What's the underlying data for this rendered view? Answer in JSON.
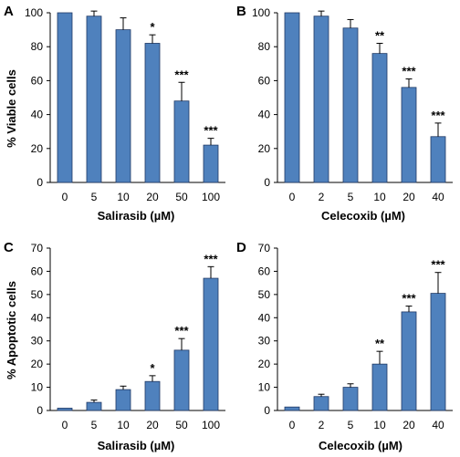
{
  "colors": {
    "bar": "#4F81BD",
    "bar_edge": "#1F3864",
    "axis": "#000000",
    "text": "#000000"
  },
  "chart_data": [
    {
      "panel": "A",
      "type": "bar",
      "ylabel": "% Viable cells",
      "xlabel": "Salirasib (µM)",
      "categories": [
        "0",
        "5",
        "10",
        "20",
        "50",
        "100"
      ],
      "values": [
        100,
        98,
        90,
        82,
        48,
        22
      ],
      "errors": [
        0,
        3,
        7,
        5,
        11,
        4
      ],
      "significance": [
        "",
        "",
        "",
        "*",
        "***",
        "***"
      ],
      "ylim": [
        0,
        120
      ],
      "yticks": [
        "0",
        "20",
        "40",
        "60",
        "80",
        "100"
      ]
    },
    {
      "panel": "B",
      "type": "bar",
      "xlabel": "Celecoxib (µM)",
      "categories": [
        "0",
        "2",
        "5",
        "10",
        "20",
        "40"
      ],
      "values": [
        100,
        98,
        91,
        76,
        56,
        27
      ],
      "errors": [
        0,
        3,
        5,
        6,
        5,
        8
      ],
      "significance": [
        "",
        "",
        "",
        "**",
        "***",
        "***"
      ],
      "ylim": [
        0,
        120
      ],
      "yticks": [
        "0",
        "20",
        "40",
        "60",
        "80",
        "100"
      ]
    },
    {
      "panel": "C",
      "type": "bar",
      "ylabel": "% Apoptotic cells",
      "xlabel": "Salirasib  (µM)",
      "categories": [
        "0",
        "5",
        "10",
        "20",
        "50",
        "100"
      ],
      "values": [
        1,
        3.5,
        9,
        12.5,
        26,
        57
      ],
      "errors": [
        0,
        1,
        1.5,
        2.5,
        5,
        5
      ],
      "significance": [
        "",
        "",
        "",
        "*",
        "***",
        "***"
      ],
      "ylim": [
        0,
        70
      ],
      "yticks": [
        "0",
        "10",
        "20",
        "30",
        "40",
        "50",
        "60",
        "70"
      ]
    },
    {
      "panel": "D",
      "type": "bar",
      "xlabel": "Celecoxib (µM)",
      "categories": [
        "0",
        "2",
        "5",
        "10",
        "20",
        "40"
      ],
      "values": [
        1.5,
        6,
        10,
        20,
        42.5,
        50.5
      ],
      "errors": [
        0,
        1,
        1.5,
        5.5,
        2.5,
        9
      ],
      "significance": [
        "",
        "",
        "",
        "**",
        "***",
        "***"
      ],
      "ylim": [
        0,
        70
      ],
      "yticks": [
        "0",
        "10",
        "20",
        "30",
        "40",
        "50",
        "60",
        "70"
      ]
    }
  ]
}
